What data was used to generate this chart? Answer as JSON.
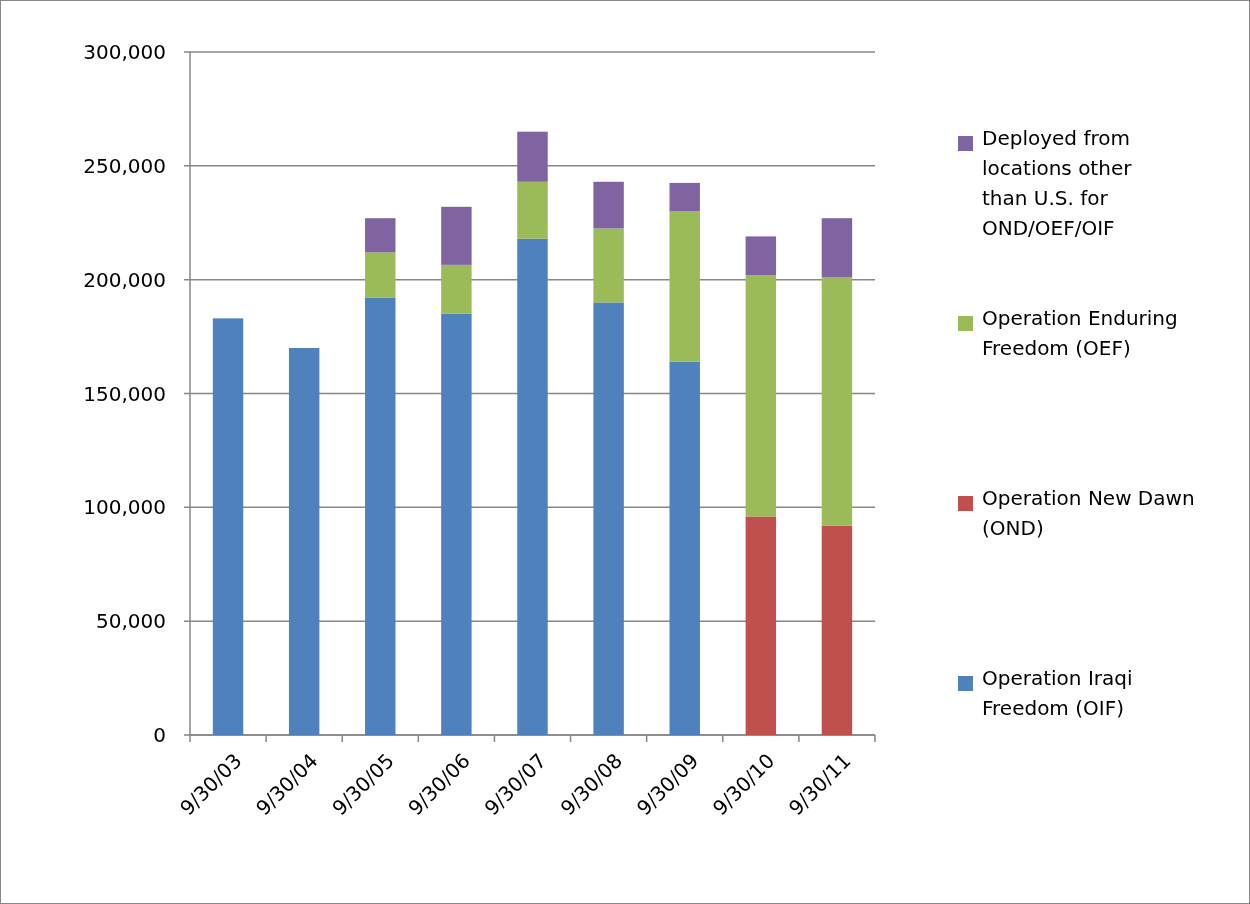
{
  "chart_data": {
    "type": "bar",
    "stacked": true,
    "categories": [
      "9/30/03",
      "9/30/04",
      "9/30/05",
      "9/30/06",
      "9/30/07",
      "9/30/08",
      "9/30/09",
      "9/30/10",
      "9/30/11"
    ],
    "series": [
      {
        "name": "Operation Iraqi Freedom (OIF)",
        "color": "#4f81bd",
        "values": [
          183000,
          170000,
          192000,
          185000,
          218000,
          190000,
          164000,
          null,
          null
        ]
      },
      {
        "name": "Operation New Dawn (OND)",
        "color": "#c0504d",
        "values": [
          null,
          null,
          null,
          null,
          null,
          null,
          null,
          96000,
          92000
        ]
      },
      {
        "name": "Operation Enduring Freedom (OEF)",
        "color": "#9bbb59",
        "values": [
          null,
          null,
          20000,
          21500,
          25000,
          32500,
          66000,
          106000,
          109000
        ]
      },
      {
        "name": "Deployed from locations other than U.S. for OND/OEF/OIF",
        "color": "#8064a2",
        "values": [
          null,
          null,
          15000,
          25500,
          22000,
          20500,
          12500,
          17000,
          26000
        ]
      }
    ],
    "ylim": [
      0,
      300000
    ],
    "yticks": [
      {
        "value": 0,
        "label": "0"
      },
      {
        "value": 50000,
        "label": "50,000"
      },
      {
        "value": 100000,
        "label": "100,000"
      },
      {
        "value": 150000,
        "label": "150,000"
      },
      {
        "value": 200000,
        "label": "200,000"
      },
      {
        "value": 250000,
        "label": "250,000"
      },
      {
        "value": 300000,
        "label": "300,000"
      }
    ],
    "grid": "y",
    "legend": "right"
  }
}
